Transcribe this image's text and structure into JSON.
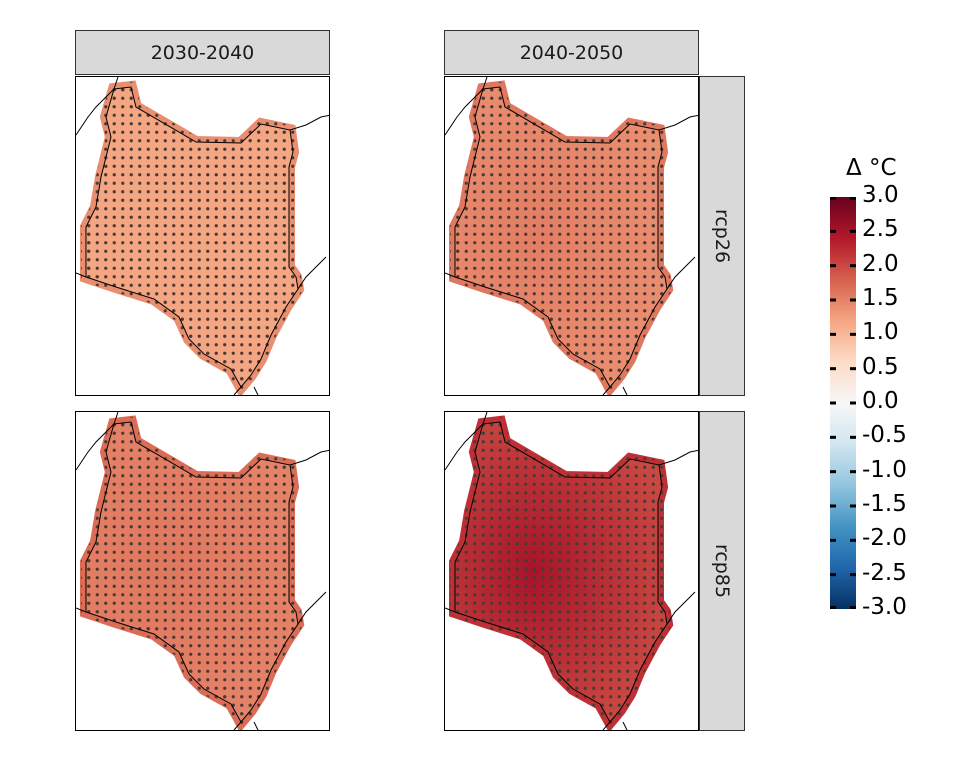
{
  "facets": {
    "columns": [
      "2030-2040",
      "2040-2050"
    ],
    "rows": [
      "rcp26",
      "rcp85"
    ]
  },
  "panels": [
    {
      "period": "2030-2040",
      "scenario": "rcp26",
      "mean_change": 1.2,
      "hotspot_change": 1.2,
      "color": "#f2b39a"
    },
    {
      "period": "2040-2050",
      "scenario": "rcp26",
      "mean_change": 1.4,
      "hotspot_change": 1.55,
      "color": "#eea588"
    },
    {
      "period": "2030-2040",
      "scenario": "rcp85",
      "mean_change": 1.5,
      "hotspot_change": 1.6,
      "color": "#e5896b"
    },
    {
      "period": "2040-2050",
      "scenario": "rcp85",
      "mean_change": 2.0,
      "hotspot_change": 2.5,
      "color": "#cc4a42"
    }
  ],
  "legend": {
    "title": "Δ °C",
    "ticks": [
      "3.0",
      "2.5",
      "2.0",
      "1.5",
      "1.0",
      "0.5",
      "0.0",
      "-0.5",
      "-1.0",
      "-1.5",
      "-2.0",
      "-2.5",
      "-3.0"
    ],
    "range": [
      -3.0,
      3.0
    ],
    "palette": [
      "#053061",
      "#2166ac",
      "#4393c3",
      "#92c5de",
      "#d1e5f0",
      "#f7f7f7",
      "#fddbc7",
      "#f4a582",
      "#d6604d",
      "#b2182b",
      "#67001f"
    ]
  },
  "map_style": {
    "stipple_color": "#4a3a34",
    "border_color": "#000000"
  }
}
